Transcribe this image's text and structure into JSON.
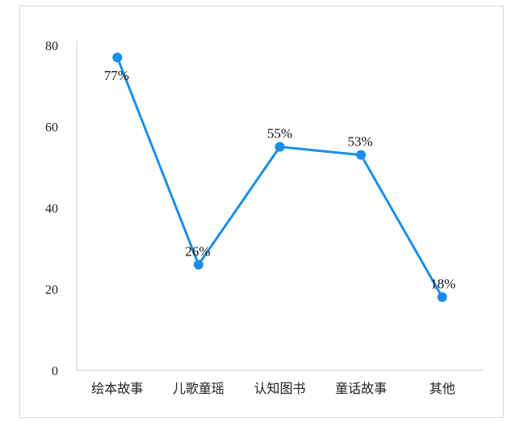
{
  "chart_data": {
    "type": "line",
    "categories": [
      "绘本故事",
      "儿歌童瑶",
      "认知图书",
      "童话故事",
      "其他"
    ],
    "values": [
      77,
      26,
      55,
      53,
      18
    ],
    "data_labels": [
      "77%",
      "26%",
      "55%",
      "53%",
      "18%"
    ],
    "y_ticks": [
      0,
      20,
      40,
      60,
      80
    ],
    "ylim": [
      0,
      80
    ],
    "grid": false,
    "legend": "none",
    "line_color": "#1a8fe8",
    "axis_color": "#c9cde3"
  }
}
